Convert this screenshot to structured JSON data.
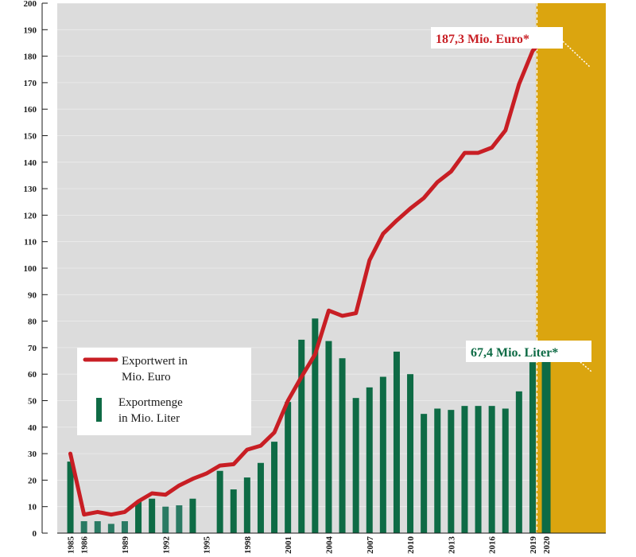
{
  "chart_data": {
    "type": "bar+line",
    "ylim": [
      0,
      200
    ],
    "y_ticks": [
      0,
      10,
      20,
      30,
      40,
      50,
      60,
      70,
      80,
      90,
      100,
      110,
      120,
      130,
      140,
      150,
      160,
      170,
      180,
      190,
      200
    ],
    "years": [
      1985,
      1986,
      1987,
      1988,
      1989,
      1990,
      1991,
      1992,
      1993,
      1994,
      1995,
      1996,
      1997,
      1998,
      1999,
      2000,
      2001,
      2002,
      2003,
      2004,
      2005,
      2006,
      2007,
      2008,
      2009,
      2010,
      2011,
      2012,
      2013,
      2014,
      2015,
      2016,
      2017,
      2018,
      2019,
      2020
    ],
    "x_tick_labels": [
      "1985",
      "1986",
      "1989",
      "1992",
      "1995",
      "1998",
      "2001",
      "2004",
      "2007",
      "2010",
      "2013",
      "2016",
      "2019",
      "2020"
    ],
    "x_tick_years": [
      1985,
      1986,
      1989,
      1992,
      1995,
      1998,
      2001,
      2004,
      2007,
      2010,
      2013,
      2016,
      2019,
      2020
    ],
    "highlight_year": 2020,
    "series": [
      {
        "name": "Exportmenge in Mio. Liter",
        "kind": "bar",
        "color": "#0e6b45",
        "values": [
          27,
          4.5,
          4.5,
          3.5,
          4.5,
          12,
          13,
          10,
          10.5,
          13,
          null,
          23.5,
          16.5,
          21,
          26.5,
          34.5,
          49.5,
          73,
          81,
          72.5,
          66,
          51,
          55,
          59,
          68.5,
          60,
          45,
          47,
          46.5,
          48,
          48,
          48,
          47,
          53.5,
          64.5,
          67.4
        ]
      },
      {
        "name": "Exportwert in Mio. Euro",
        "kind": "line",
        "color": "#c81e24",
        "values": [
          30,
          7,
          8,
          7,
          8,
          12,
          15,
          14.5,
          18,
          20.5,
          22.5,
          25.5,
          26,
          31.5,
          33,
          38,
          50,
          59,
          67.5,
          84,
          82,
          83,
          103,
          113,
          118,
          122.5,
          126.5,
          132.5,
          136.5,
          143.5,
          143.5,
          145.5,
          152,
          169.5,
          182,
          187.3
        ]
      }
    ],
    "legend": {
      "line_label_1": "Exportwert in",
      "line_label_2": "Mio. Euro",
      "bar_label_1": "Exportmenge",
      "bar_label_2": "in Mio. Liter"
    },
    "callouts": {
      "euro": "187,3 Mio. Euro*",
      "liter": "67,4 Mio. Liter*"
    },
    "colors": {
      "plot_bg": "#dcdcdc",
      "highlight_bg": "#dba50f",
      "bar": "#0e6b45",
      "bar_light": "#2a7a63",
      "line": "#c81e24",
      "grid": "#ffffff"
    }
  }
}
